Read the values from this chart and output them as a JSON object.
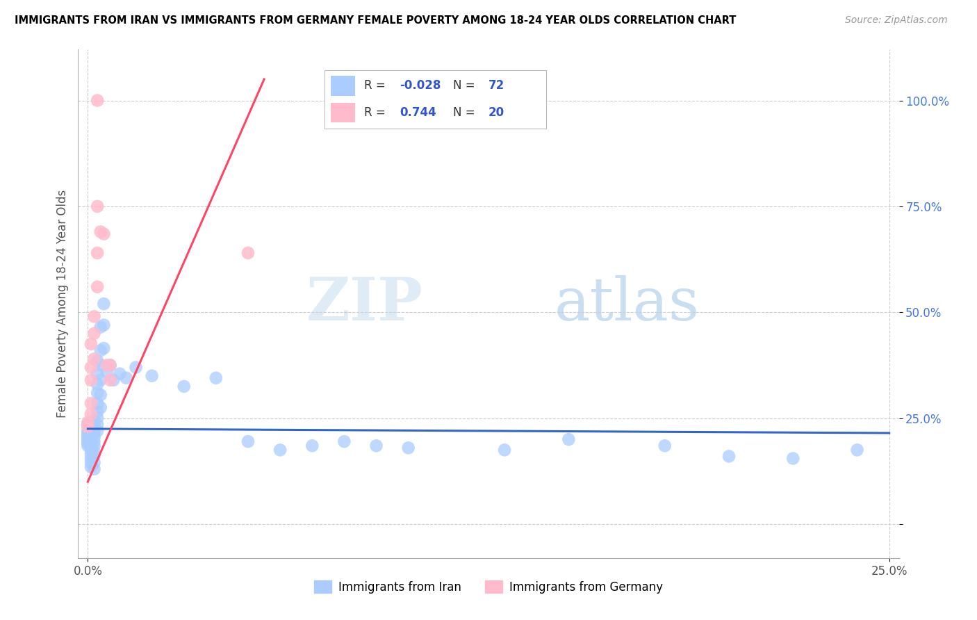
{
  "title": "IMMIGRANTS FROM IRAN VS IMMIGRANTS FROM GERMANY FEMALE POVERTY AMONG 18-24 YEAR OLDS CORRELATION CHART",
  "source": "Source: ZipAtlas.com",
  "ylabel": "Female Poverty Among 18-24 Year Olds",
  "xlim": [
    -0.003,
    0.253
  ],
  "ylim": [
    -0.08,
    1.12
  ],
  "xticks": [
    0.0,
    0.25
  ],
  "xticklabels": [
    "0.0%",
    "25.0%"
  ],
  "ytick_positions": [
    0.0,
    0.25,
    0.5,
    0.75,
    1.0
  ],
  "yticklabels": [
    "",
    "25.0%",
    "50.0%",
    "75.0%",
    "100.0%"
  ],
  "iran_color": "#aaccff",
  "germany_color": "#ffbbcc",
  "iran_line_color": "#3366cc",
  "germany_line_color": "#ff4466",
  "watermark_zip": "ZIP",
  "watermark_atlas": "atlas",
  "iran_R": -0.028,
  "iran_N": 72,
  "germany_R": 0.744,
  "germany_N": 20,
  "iran_scatter": [
    [
      0.0,
      0.235
    ],
    [
      0.0,
      0.22
    ],
    [
      0.0,
      0.215
    ],
    [
      0.0,
      0.21
    ],
    [
      0.0,
      0.205
    ],
    [
      0.0,
      0.2
    ],
    [
      0.0,
      0.195
    ],
    [
      0.0,
      0.19
    ],
    [
      0.0,
      0.185
    ],
    [
      0.001,
      0.24
    ],
    [
      0.001,
      0.23
    ],
    [
      0.001,
      0.225
    ],
    [
      0.001,
      0.215
    ],
    [
      0.001,
      0.21
    ],
    [
      0.001,
      0.2
    ],
    [
      0.001,
      0.195
    ],
    [
      0.001,
      0.185
    ],
    [
      0.001,
      0.175
    ],
    [
      0.001,
      0.165
    ],
    [
      0.001,
      0.155
    ],
    [
      0.001,
      0.145
    ],
    [
      0.001,
      0.135
    ],
    [
      0.002,
      0.245
    ],
    [
      0.002,
      0.235
    ],
    [
      0.002,
      0.225
    ],
    [
      0.002,
      0.215
    ],
    [
      0.002,
      0.205
    ],
    [
      0.002,
      0.195
    ],
    [
      0.002,
      0.185
    ],
    [
      0.002,
      0.17
    ],
    [
      0.002,
      0.16
    ],
    [
      0.002,
      0.145
    ],
    [
      0.002,
      0.13
    ],
    [
      0.003,
      0.385
    ],
    [
      0.003,
      0.355
    ],
    [
      0.003,
      0.33
    ],
    [
      0.003,
      0.31
    ],
    [
      0.003,
      0.285
    ],
    [
      0.003,
      0.265
    ],
    [
      0.003,
      0.25
    ],
    [
      0.003,
      0.235
    ],
    [
      0.003,
      0.22
    ],
    [
      0.004,
      0.465
    ],
    [
      0.004,
      0.41
    ],
    [
      0.004,
      0.375
    ],
    [
      0.004,
      0.34
    ],
    [
      0.004,
      0.305
    ],
    [
      0.004,
      0.275
    ],
    [
      0.005,
      0.52
    ],
    [
      0.005,
      0.47
    ],
    [
      0.005,
      0.415
    ],
    [
      0.006,
      0.36
    ],
    [
      0.007,
      0.375
    ],
    [
      0.008,
      0.34
    ],
    [
      0.01,
      0.355
    ],
    [
      0.012,
      0.345
    ],
    [
      0.015,
      0.37
    ],
    [
      0.02,
      0.35
    ],
    [
      0.03,
      0.325
    ],
    [
      0.04,
      0.345
    ],
    [
      0.05,
      0.195
    ],
    [
      0.06,
      0.175
    ],
    [
      0.07,
      0.185
    ],
    [
      0.08,
      0.195
    ],
    [
      0.09,
      0.185
    ],
    [
      0.1,
      0.18
    ],
    [
      0.13,
      0.175
    ],
    [
      0.15,
      0.2
    ],
    [
      0.18,
      0.185
    ],
    [
      0.2,
      0.16
    ],
    [
      0.22,
      0.155
    ],
    [
      0.24,
      0.175
    ]
  ],
  "germany_scatter": [
    [
      0.0,
      0.24
    ],
    [
      0.0,
      0.23
    ],
    [
      0.001,
      0.285
    ],
    [
      0.001,
      0.26
    ],
    [
      0.001,
      0.37
    ],
    [
      0.001,
      0.34
    ],
    [
      0.001,
      0.425
    ],
    [
      0.002,
      0.39
    ],
    [
      0.002,
      0.45
    ],
    [
      0.002,
      0.49
    ],
    [
      0.003,
      0.56
    ],
    [
      0.003,
      0.64
    ],
    [
      0.003,
      0.75
    ],
    [
      0.004,
      0.69
    ],
    [
      0.005,
      0.685
    ],
    [
      0.006,
      0.375
    ],
    [
      0.007,
      0.34
    ],
    [
      0.007,
      0.375
    ],
    [
      0.05,
      0.64
    ],
    [
      0.003,
      1.0
    ]
  ],
  "germany_line_x": [
    0.0,
    0.055
  ],
  "germany_line_y": [
    0.1,
    1.05
  ],
  "iran_line_x": [
    0.0,
    0.25
  ],
  "iran_line_y": [
    0.225,
    0.215
  ]
}
